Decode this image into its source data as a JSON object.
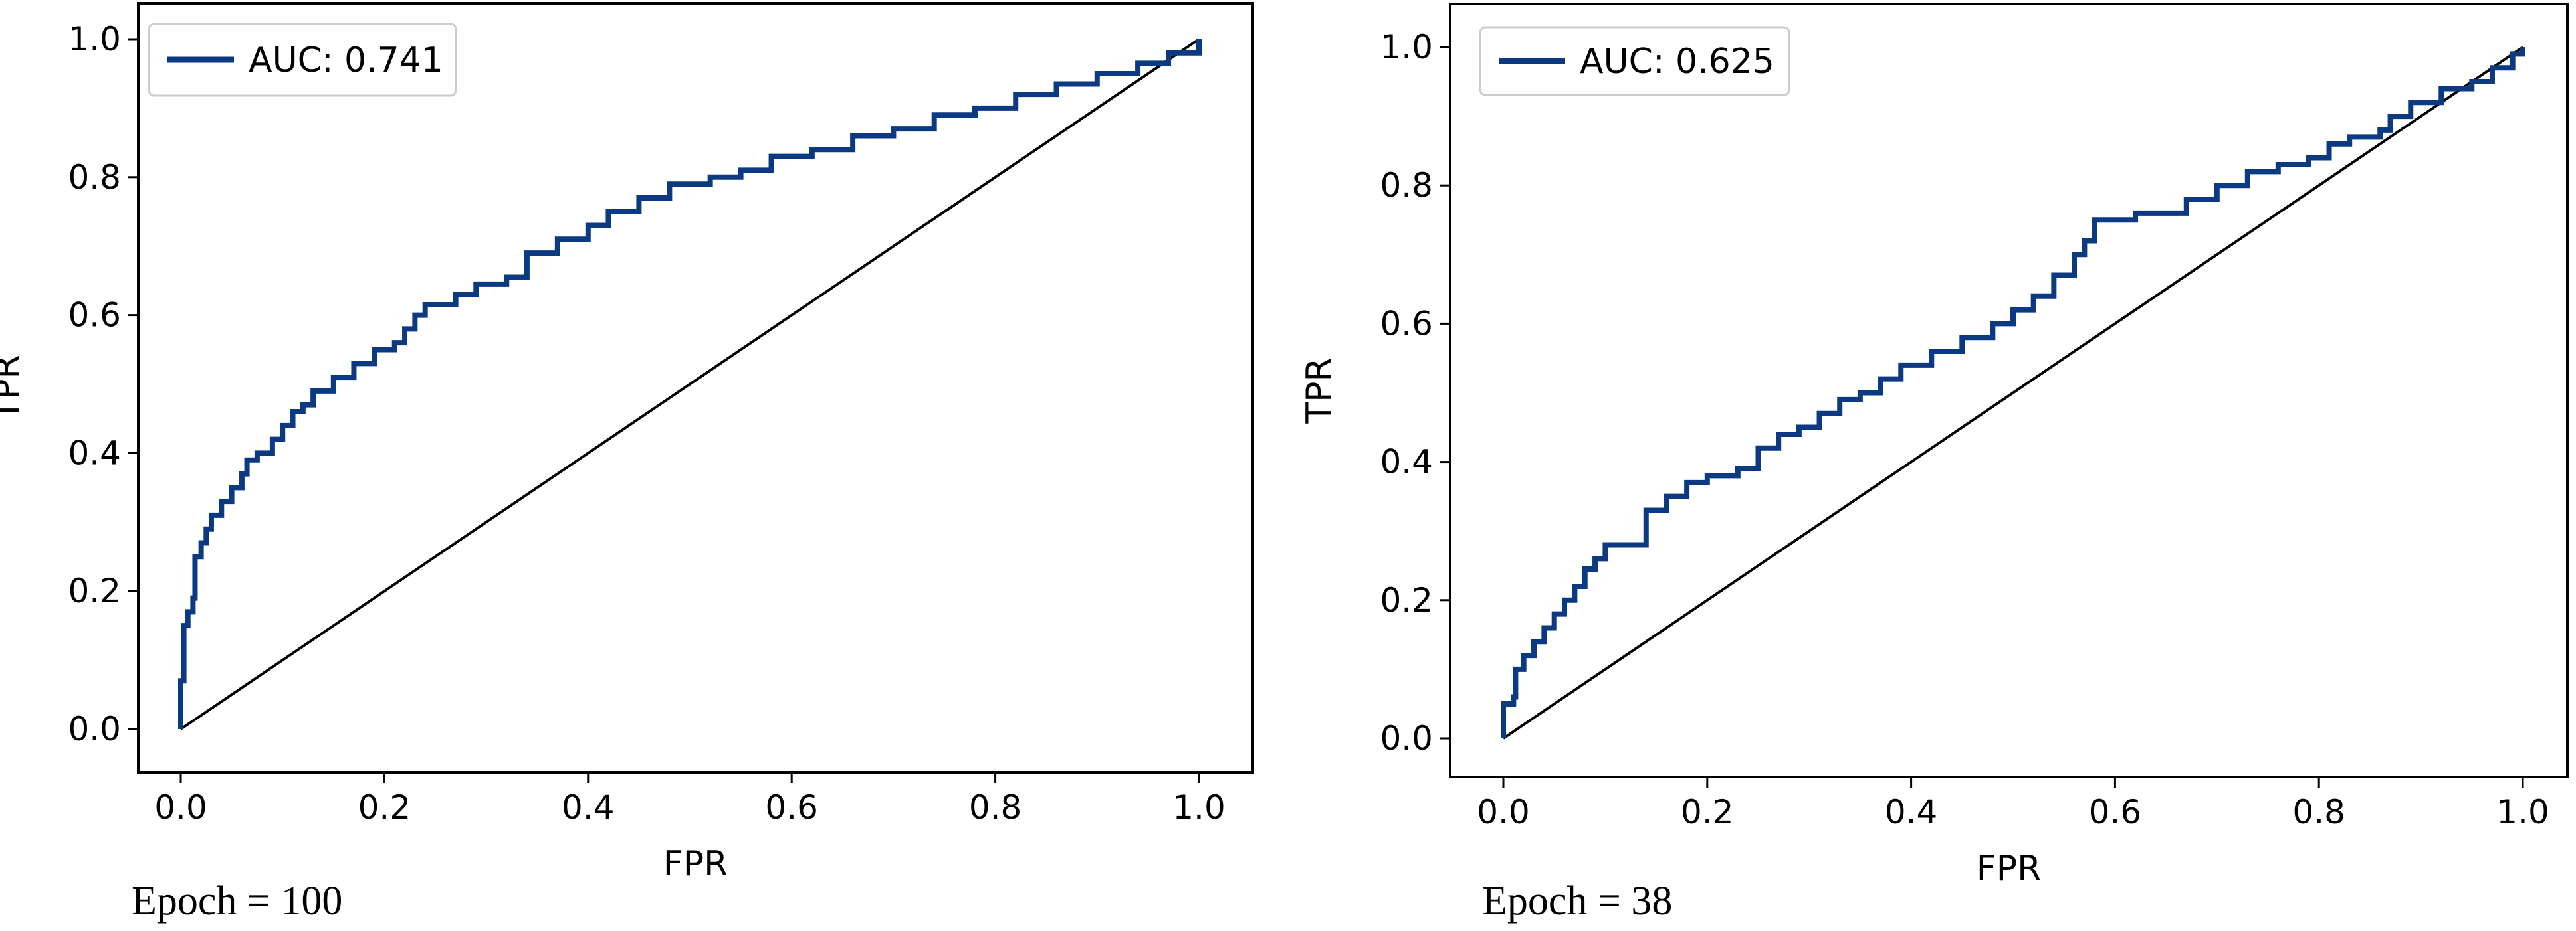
{
  "colors": {
    "roc": "#0b3a82",
    "diagonal": "#000000",
    "frame": "#000000"
  },
  "chart_data": [
    {
      "type": "line",
      "caption": "Epoch = 100",
      "xlabel": "FPR",
      "ylabel": "TPR",
      "xlim": [
        0,
        1
      ],
      "ylim": [
        0,
        1
      ],
      "xticks": [
        "0.0",
        "0.2",
        "0.4",
        "0.6",
        "0.8",
        "1.0"
      ],
      "yticks": [
        "0.0",
        "0.2",
        "0.4",
        "0.6",
        "0.8",
        "1.0"
      ],
      "legend": {
        "label": "AUC: 0.741",
        "position": "upper-left"
      },
      "series": [
        {
          "name": "AUC: 0.741",
          "points": [
            [
              0,
              0
            ],
            [
              0,
              0.07
            ],
            [
              0.003,
              0.07
            ],
            [
              0.003,
              0.15
            ],
            [
              0.007,
              0.17
            ],
            [
              0.012,
              0.19
            ],
            [
              0.014,
              0.25
            ],
            [
              0.02,
              0.27
            ],
            [
              0.025,
              0.29
            ],
            [
              0.03,
              0.31
            ],
            [
              0.04,
              0.33
            ],
            [
              0.05,
              0.35
            ],
            [
              0.06,
              0.37
            ],
            [
              0.065,
              0.39
            ],
            [
              0.075,
              0.4
            ],
            [
              0.09,
              0.42
            ],
            [
              0.1,
              0.44
            ],
            [
              0.11,
              0.46
            ],
            [
              0.12,
              0.47
            ],
            [
              0.13,
              0.49
            ],
            [
              0.15,
              0.51
            ],
            [
              0.17,
              0.53
            ],
            [
              0.19,
              0.55
            ],
            [
              0.21,
              0.56
            ],
            [
              0.22,
              0.58
            ],
            [
              0.23,
              0.6
            ],
            [
              0.24,
              0.615
            ],
            [
              0.27,
              0.63
            ],
            [
              0.29,
              0.645
            ],
            [
              0.32,
              0.655
            ],
            [
              0.34,
              0.67
            ],
            [
              0.34,
              0.69
            ],
            [
              0.37,
              0.71
            ],
            [
              0.4,
              0.73
            ],
            [
              0.42,
              0.75
            ],
            [
              0.45,
              0.77
            ],
            [
              0.48,
              0.79
            ],
            [
              0.52,
              0.8
            ],
            [
              0.55,
              0.81
            ],
            [
              0.58,
              0.83
            ],
            [
              0.62,
              0.84
            ],
            [
              0.66,
              0.86
            ],
            [
              0.7,
              0.87
            ],
            [
              0.74,
              0.89
            ],
            [
              0.78,
              0.9
            ],
            [
              0.82,
              0.92
            ],
            [
              0.86,
              0.935
            ],
            [
              0.9,
              0.95
            ],
            [
              0.94,
              0.965
            ],
            [
              0.97,
              0.98
            ],
            [
              1.0,
              1.0
            ]
          ]
        },
        {
          "name": "chance",
          "points": [
            [
              0,
              0
            ],
            [
              1,
              1
            ]
          ]
        }
      ]
    },
    {
      "type": "line",
      "caption": "Epoch = 38",
      "xlabel": "FPR",
      "ylabel": "TPR",
      "xlim": [
        0,
        1
      ],
      "ylim": [
        0,
        1
      ],
      "xticks": [
        "0.0",
        "0.2",
        "0.4",
        "0.6",
        "0.8",
        "1.0"
      ],
      "yticks": [
        "0.0",
        "0.2",
        "0.4",
        "0.6",
        "0.8",
        "1.0"
      ],
      "legend": {
        "label": "AUC: 0.625",
        "position": "upper-left"
      },
      "series": [
        {
          "name": "AUC: 0.625",
          "points": [
            [
              0,
              0
            ],
            [
              0,
              0.05
            ],
            [
              0.01,
              0.06
            ],
            [
              0.012,
              0.1
            ],
            [
              0.02,
              0.12
            ],
            [
              0.03,
              0.14
            ],
            [
              0.04,
              0.16
            ],
            [
              0.05,
              0.18
            ],
            [
              0.06,
              0.2
            ],
            [
              0.07,
              0.22
            ],
            [
              0.08,
              0.245
            ],
            [
              0.09,
              0.26
            ],
            [
              0.1,
              0.28
            ],
            [
              0.12,
              0.28
            ],
            [
              0.14,
              0.3
            ],
            [
              0.14,
              0.33
            ],
            [
              0.16,
              0.35
            ],
            [
              0.18,
              0.37
            ],
            [
              0.2,
              0.38
            ],
            [
              0.23,
              0.39
            ],
            [
              0.25,
              0.42
            ],
            [
              0.27,
              0.44
            ],
            [
              0.29,
              0.45
            ],
            [
              0.31,
              0.47
            ],
            [
              0.33,
              0.49
            ],
            [
              0.35,
              0.5
            ],
            [
              0.37,
              0.52
            ],
            [
              0.39,
              0.54
            ],
            [
              0.42,
              0.56
            ],
            [
              0.45,
              0.58
            ],
            [
              0.48,
              0.6
            ],
            [
              0.5,
              0.62
            ],
            [
              0.52,
              0.64
            ],
            [
              0.54,
              0.67
            ],
            [
              0.56,
              0.7
            ],
            [
              0.57,
              0.72
            ],
            [
              0.58,
              0.75
            ],
            [
              0.62,
              0.76
            ],
            [
              0.65,
              0.76
            ],
            [
              0.67,
              0.78
            ],
            [
              0.7,
              0.8
            ],
            [
              0.73,
              0.82
            ],
            [
              0.76,
              0.83
            ],
            [
              0.79,
              0.84
            ],
            [
              0.81,
              0.86
            ],
            [
              0.83,
              0.87
            ],
            [
              0.86,
              0.88
            ],
            [
              0.87,
              0.9
            ],
            [
              0.89,
              0.92
            ],
            [
              0.92,
              0.94
            ],
            [
              0.95,
              0.95
            ],
            [
              0.97,
              0.97
            ],
            [
              0.99,
              0.99
            ],
            [
              1.0,
              1.0
            ]
          ]
        },
        {
          "name": "chance",
          "points": [
            [
              0,
              0
            ],
            [
              1,
              1
            ]
          ]
        }
      ]
    }
  ]
}
